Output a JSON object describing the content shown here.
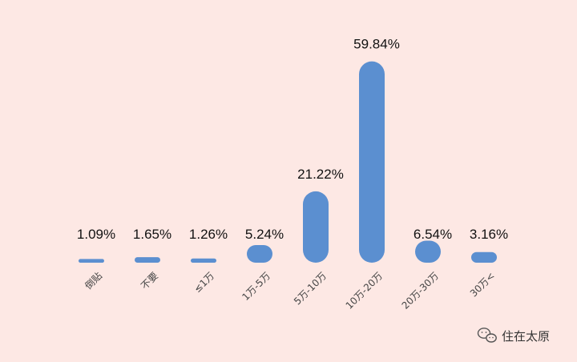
{
  "chart_data": {
    "type": "bar",
    "categories": [
      "倒贴",
      "不要",
      "≤1万",
      "1万-5万",
      "5万-10万",
      "10万-20万",
      "20万-30万",
      "30万<"
    ],
    "values": [
      1.09,
      1.65,
      1.26,
      5.24,
      21.22,
      59.84,
      6.54,
      3.16
    ],
    "value_labels": [
      "1.09%",
      "1.65%",
      "1.26%",
      "5.24%",
      "21.22%",
      "59.84%",
      "6.54%",
      "3.16%"
    ],
    "title": "",
    "xlabel": "",
    "ylabel": "",
    "ylim": [
      0,
      60
    ],
    "grid": false,
    "bar_color": "#5b8fd0",
    "background": "#fde8e4"
  },
  "watermark": {
    "icon": "wechat-icon",
    "text": "住在太原"
  }
}
